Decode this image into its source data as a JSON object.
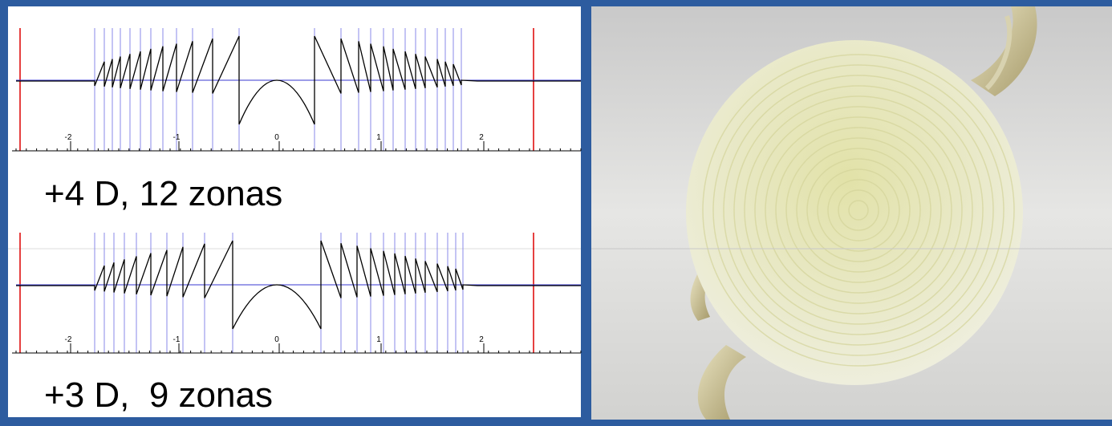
{
  "panels": [
    {
      "caption": "+4 D, 12 zonas",
      "ticks": [
        "-2",
        "-1",
        "0",
        "1",
        "2"
      ]
    },
    {
      "caption": "+3 D,  9 zonas",
      "ticks": [
        "-2",
        "-1",
        "0",
        "1",
        "2"
      ]
    }
  ]
}
